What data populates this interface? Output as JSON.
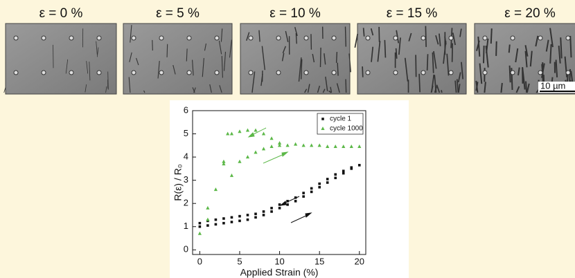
{
  "panels": [
    {
      "label": "ε = 0 %"
    },
    {
      "label": "ε = 5 %"
    },
    {
      "label": "ε = 10 %"
    },
    {
      "label": "ε = 15 %"
    },
    {
      "label": "ε = 20 %",
      "scale_bar": "10 µm"
    }
  ],
  "chart_data": {
    "type": "scatter",
    "xlabel": "Applied Strain (%)",
    "ylabel": "R(ε) / R₀",
    "xlim": [
      -0.9,
      20.8
    ],
    "ylim": [
      -0.2,
      6
    ],
    "xticks": [
      0,
      5,
      10,
      15,
      20
    ],
    "yticks": [
      0,
      1,
      2,
      3,
      4,
      5,
      6
    ],
    "legend": "upper right",
    "series": [
      {
        "name": "cycle 1",
        "color": "#111111",
        "marker": "square",
        "x": [
          0,
          1,
          2,
          3,
          4,
          5,
          6,
          7,
          8,
          9,
          10,
          11,
          12,
          13,
          14,
          15,
          16,
          17,
          18,
          19,
          20,
          19,
          18,
          17,
          16,
          15,
          14,
          13,
          12,
          11,
          10,
          9,
          8,
          7,
          6,
          5,
          4,
          3,
          2,
          1,
          0
        ],
        "values": [
          1.0,
          1.05,
          1.1,
          1.15,
          1.2,
          1.25,
          1.3,
          1.4,
          1.5,
          1.65,
          1.8,
          1.95,
          2.1,
          2.3,
          2.5,
          2.7,
          2.9,
          3.1,
          3.3,
          3.5,
          3.65,
          3.55,
          3.4,
          3.25,
          3.05,
          2.85,
          2.65,
          2.45,
          2.25,
          2.1,
          1.95,
          1.8,
          1.65,
          1.55,
          1.5,
          1.45,
          1.4,
          1.35,
          1.3,
          1.25,
          1.15
        ]
      },
      {
        "name": "cycle 1000",
        "color": "#5cb848",
        "marker": "triangle",
        "x": [
          0,
          1,
          1,
          2,
          3,
          3,
          3.5,
          4,
          5,
          6,
          7,
          8,
          9,
          10,
          11,
          12,
          13,
          14,
          15,
          16,
          17,
          18,
          19,
          20,
          4,
          5,
          6,
          7,
          8,
          9,
          10
        ],
        "values": [
          0.7,
          1.3,
          1.8,
          2.6,
          3.7,
          3.8,
          5.0,
          5.0,
          5.1,
          5.15,
          5.15,
          5.0,
          4.8,
          4.6,
          4.5,
          4.55,
          4.5,
          4.5,
          4.5,
          4.45,
          4.45,
          4.45,
          4.45,
          4.45,
          3.2,
          3.8,
          4.0,
          4.2,
          4.35,
          4.45,
          4.5
        ]
      }
    ]
  }
}
